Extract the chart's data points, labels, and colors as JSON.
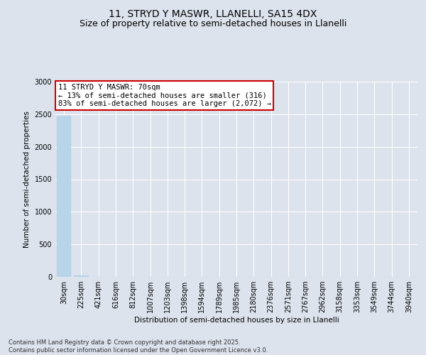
{
  "title": "11, STRYD Y MASWR, LLANELLI, SA15 4DX",
  "subtitle": "Size of property relative to semi-detached houses in Llanelli",
  "xlabel": "Distribution of semi-detached houses by size in Llanelli",
  "ylabel": "Number of semi-detached properties",
  "annotation_title": "11 STRYD Y MASWR: 70sqm",
  "annotation_line2": "← 13% of semi-detached houses are smaller (316)",
  "annotation_line3": "83% of semi-detached houses are larger (2,072) →",
  "footer_line1": "Contains HM Land Registry data © Crown copyright and database right 2025.",
  "footer_line2": "Contains public sector information licensed under the Open Government Licence v3.0.",
  "categories": [
    "30sqm",
    "225sqm",
    "421sqm",
    "616sqm",
    "812sqm",
    "1007sqm",
    "1203sqm",
    "1398sqm",
    "1594sqm",
    "1789sqm",
    "1985sqm",
    "2180sqm",
    "2376sqm",
    "2571sqm",
    "2767sqm",
    "2962sqm",
    "3158sqm",
    "3353sqm",
    "3549sqm",
    "3744sqm",
    "3940sqm"
  ],
  "values": [
    2480,
    20,
    0,
    0,
    0,
    0,
    0,
    0,
    0,
    0,
    0,
    0,
    0,
    0,
    0,
    0,
    0,
    0,
    0,
    0,
    0
  ],
  "bar_color": "#b8d4e8",
  "bar_edge_color": "#b8d4e8",
  "annotation_box_color": "#cc0000",
  "ylim": [
    0,
    3000
  ],
  "yticks": [
    0,
    500,
    1000,
    1500,
    2000,
    2500,
    3000
  ],
  "bg_color": "#dce3ed",
  "plot_bg_color": "#dce3ed",
  "grid_color": "#ffffff",
  "title_fontsize": 10,
  "subtitle_fontsize": 9,
  "annotation_fontsize": 7.5,
  "axis_label_fontsize": 7.5,
  "tick_fontsize": 7,
  "footer_fontsize": 6
}
